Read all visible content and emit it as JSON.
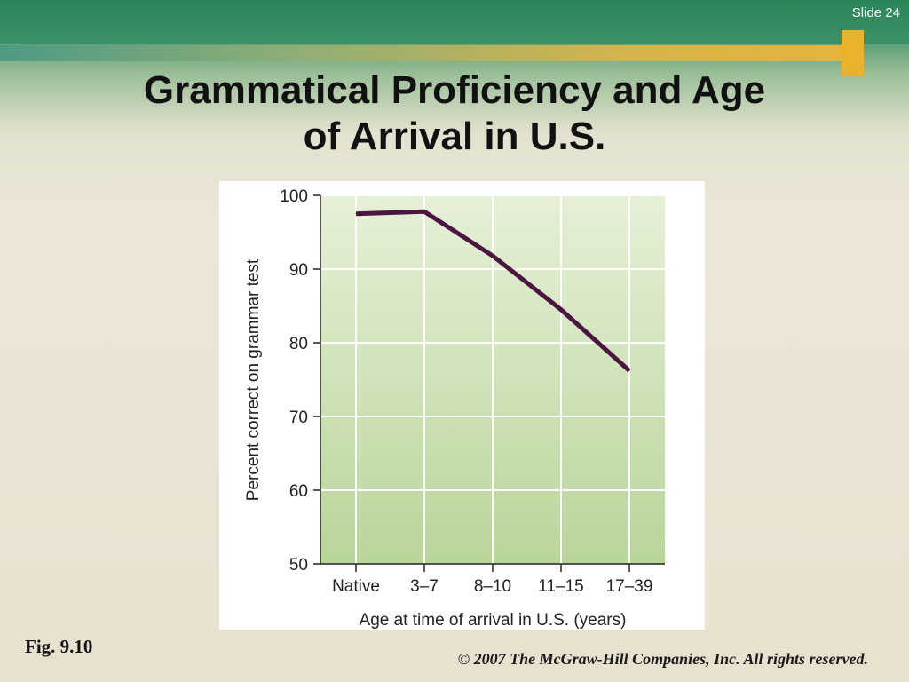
{
  "slide": {
    "number_label": "Slide 24",
    "title_line1": "Grammatical Proficiency and Age",
    "title_line2": "of Arrival in U.S.",
    "figure_label": "Fig. 9.10",
    "copyright": "© 2007 The McGraw-Hill Companies, Inc. All rights reserved."
  },
  "colors": {
    "plot_bg_top": "#e6f0d8",
    "plot_bg_bottom": "#b8d599",
    "line": "#4a1541",
    "grid": "#ffffff"
  },
  "chart_data": {
    "type": "line",
    "title": "",
    "xlabel": "Age at time of arrival in U.S. (years)",
    "ylabel": "Percent correct on grammar test",
    "categories": [
      "Native",
      "3–7",
      "8–10",
      "11–15",
      "17–39"
    ],
    "series": [
      {
        "values": [
          97.5,
          97.8,
          91.8,
          84.5,
          76.2
        ]
      }
    ],
    "ylim": [
      50,
      100
    ],
    "yticks": [
      50,
      60,
      70,
      80,
      90,
      100
    ],
    "grid": true,
    "legend": "none"
  }
}
